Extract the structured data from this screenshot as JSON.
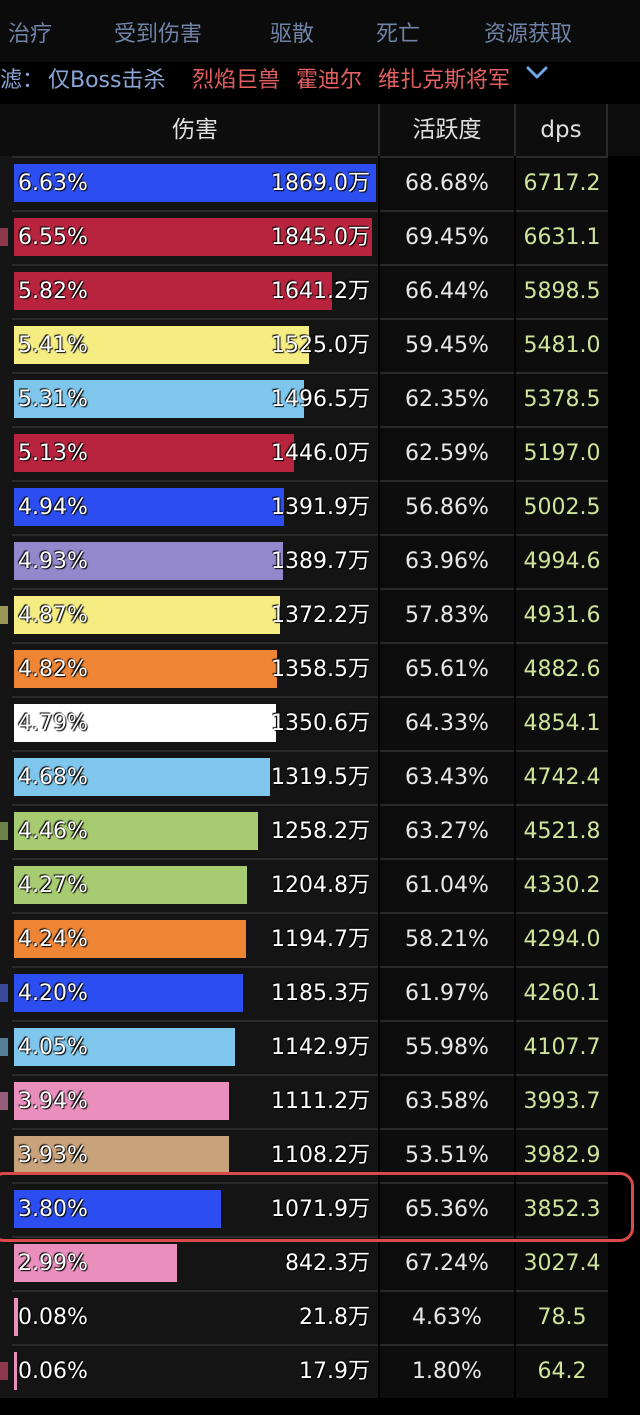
{
  "tabs": [
    "治疗",
    "受到伤害",
    "驱散",
    "死亡",
    "资源获取"
  ],
  "filter": {
    "label": "滤：",
    "items": [
      {
        "text": "仅Boss击杀",
        "color": "#8aa6d6"
      },
      {
        "text": "烈焰巨兽",
        "color": "#e26060"
      },
      {
        "text": "霍迪尔",
        "color": "#e26060"
      },
      {
        "text": "维扎克斯将军",
        "color": "#e26060"
      }
    ],
    "chevron_icon": "chevron-down-icon"
  },
  "table": {
    "headers": [
      "伤害",
      "活跃度",
      "dps"
    ],
    "rows": [
      {
        "percent_value": 6.63,
        "percent": "6.63%",
        "amount": "1869.0万",
        "activity": "68.68%",
        "dps": "6717.2",
        "color": "#2c4ef0",
        "mark_color": ""
      },
      {
        "percent_value": 6.55,
        "percent": "6.55%",
        "amount": "1845.0万",
        "activity": "69.45%",
        "dps": "6631.1",
        "color": "#b8243e",
        "mark_color": "#e05070"
      },
      {
        "percent_value": 5.82,
        "percent": "5.82%",
        "amount": "1641.2万",
        "activity": "66.44%",
        "dps": "5898.5",
        "color": "#b8243e",
        "mark_color": ""
      },
      {
        "percent_value": 5.41,
        "percent": "5.41%",
        "amount": "1525.0万",
        "activity": "59.45%",
        "dps": "5481.0",
        "color": "#f5ec82",
        "mark_color": ""
      },
      {
        "percent_value": 5.31,
        "percent": "5.31%",
        "amount": "1496.5万",
        "activity": "62.35%",
        "dps": "5378.5",
        "color": "#7ec6ec",
        "mark_color": ""
      },
      {
        "percent_value": 5.13,
        "percent": "5.13%",
        "amount": "1446.0万",
        "activity": "62.59%",
        "dps": "5197.0",
        "color": "#b8243e",
        "mark_color": ""
      },
      {
        "percent_value": 4.94,
        "percent": "4.94%",
        "amount": "1391.9万",
        "activity": "56.86%",
        "dps": "5002.5",
        "color": "#2c4ef0",
        "mark_color": ""
      },
      {
        "percent_value": 4.93,
        "percent": "4.93%",
        "amount": "1389.7万",
        "activity": "63.96%",
        "dps": "4994.6",
        "color": "#9488cc",
        "mark_color": ""
      },
      {
        "percent_value": 4.87,
        "percent": "4.87%",
        "amount": "1372.2万",
        "activity": "57.83%",
        "dps": "4931.6",
        "color": "#f5ec82",
        "mark_color": "#f5ec82"
      },
      {
        "percent_value": 4.82,
        "percent": "4.82%",
        "amount": "1358.5万",
        "activity": "65.61%",
        "dps": "4882.6",
        "color": "#ee8535",
        "mark_color": ""
      },
      {
        "percent_value": 4.79,
        "percent": "4.79%",
        "amount": "1350.6万",
        "activity": "64.33%",
        "dps": "4854.1",
        "color": "#ffffff",
        "mark_color": ""
      },
      {
        "percent_value": 4.68,
        "percent": "4.68%",
        "amount": "1319.5万",
        "activity": "63.43%",
        "dps": "4742.4",
        "color": "#7ec6ec",
        "mark_color": ""
      },
      {
        "percent_value": 4.46,
        "percent": "4.46%",
        "amount": "1258.2万",
        "activity": "63.27%",
        "dps": "4521.8",
        "color": "#a7cb70",
        "mark_color": "#a7cb70"
      },
      {
        "percent_value": 4.27,
        "percent": "4.27%",
        "amount": "1204.8万",
        "activity": "61.04%",
        "dps": "4330.2",
        "color": "#a7cb70",
        "mark_color": ""
      },
      {
        "percent_value": 4.24,
        "percent": "4.24%",
        "amount": "1194.7万",
        "activity": "58.21%",
        "dps": "4294.0",
        "color": "#ee8535",
        "mark_color": ""
      },
      {
        "percent_value": 4.2,
        "percent": "4.20%",
        "amount": "1185.3万",
        "activity": "61.97%",
        "dps": "4260.1",
        "color": "#2c4ef0",
        "mark_color": "#4e6cf0"
      },
      {
        "percent_value": 4.05,
        "percent": "4.05%",
        "amount": "1142.9万",
        "activity": "55.98%",
        "dps": "4107.7",
        "color": "#7ec6ec",
        "mark_color": "#7ec6ec"
      },
      {
        "percent_value": 3.94,
        "percent": "3.94%",
        "amount": "1111.2万",
        "activity": "63.58%",
        "dps": "3993.7",
        "color": "#ea8fbd",
        "mark_color": "#ea8fbd"
      },
      {
        "percent_value": 3.93,
        "percent": "3.93%",
        "amount": "1108.2万",
        "activity": "53.51%",
        "dps": "3982.9",
        "color": "#c8a27a",
        "mark_color": ""
      },
      {
        "percent_value": 3.8,
        "percent": "3.80%",
        "amount": "1071.9万",
        "activity": "65.36%",
        "dps": "3852.3",
        "color": "#2c4ef0",
        "mark_color": ""
      },
      {
        "percent_value": 2.99,
        "percent": "2.99%",
        "amount": "842.3万",
        "activity": "67.24%",
        "dps": "3027.4",
        "color": "#ea8fbd",
        "mark_color": ""
      },
      {
        "percent_value": 0.08,
        "percent": "0.08%",
        "amount": "21.8万",
        "activity": "4.63%",
        "dps": "78.5",
        "color": "#ea8fbd",
        "mark_color": ""
      },
      {
        "percent_value": 0.06,
        "percent": "0.06%",
        "amount": "17.9万",
        "activity": "1.80%",
        "dps": "64.2",
        "color": "#ea8fbd",
        "mark_color": "#e05070"
      }
    ]
  },
  "highlight_color": "#d94a4a"
}
